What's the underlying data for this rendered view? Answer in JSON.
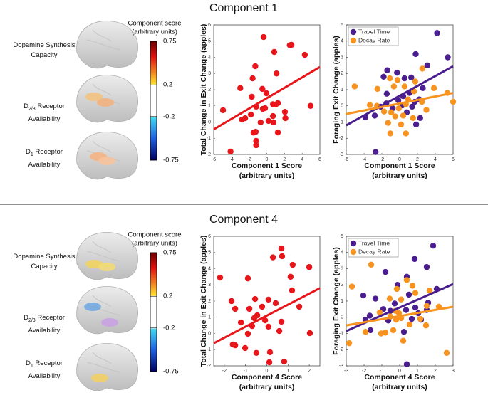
{
  "panels": [
    {
      "title": "Component 1",
      "brain": {
        "colorbar_title": "Component score",
        "colorbar_units": "(arbitrary units)",
        "colorbar": {
          "lim": [
            -0.75,
            0.75
          ],
          "ticks": [
            0.75,
            0.2,
            -0.2,
            -0.75
          ]
        },
        "labels": [
          {
            "text": "Dopamine Synthesis Capacity"
          },
          {
            "prefix": "D",
            "sub": "2/3",
            "text": "Receptor Availability"
          },
          {
            "prefix": "D",
            "sub": "1",
            "text": "Receptor Availability"
          }
        ]
      }
    },
    {
      "title": "Component 4",
      "brain": {
        "colorbar_title": "Component score",
        "colorbar_units": "(arbitrary units)",
        "colorbar": {
          "lim": [
            -0.75,
            0.75
          ],
          "ticks": [
            0.75,
            0.2,
            -0.2,
            -0.75
          ]
        },
        "labels": [
          {
            "text": "Dopamine Synthesis Capacity"
          },
          {
            "prefix": "D",
            "sub": "2/3",
            "text": "Receptor Availability"
          },
          {
            "prefix": "D",
            "sub": "1",
            "text": "Receptor Availability"
          }
        ]
      }
    }
  ],
  "chart_data": [
    {
      "type": "scatter",
      "ylabel": "Total Change in Exit Change (apples)",
      "xlabel": "Component 1 Score",
      "xlabel_units": "(arbitrary units)",
      "xlim": [
        -6,
        6
      ],
      "ylim": [
        -2,
        6
      ],
      "xticks": [
        -6,
        -4,
        -2,
        0,
        2,
        4,
        6
      ],
      "yticks": [
        -2,
        -1,
        0,
        1,
        2,
        3,
        4,
        5,
        6
      ],
      "color": "#e8161b",
      "x": [
        -0.36,
        0.84,
        2.78,
        2.6,
        4.3,
        -1.3,
        1.1,
        -1.6,
        -3.0,
        -0.5,
        -0.04,
        -1.7,
        1.25,
        1.0,
        -1.2,
        -0.2,
        -0.45,
        4.95,
        0.7,
        -4.95,
        -1.8,
        2.05,
        0.7,
        2.1,
        -2.45,
        0.2,
        -0.7,
        0.75,
        -1.5,
        -1.25,
        -1.2,
        -1.2,
        -4.1,
        1.25,
        -2.8
      ],
      "values": [
        5.25,
        4.33,
        4.77,
        4.75,
        4.15,
        3.45,
        3.0,
        2.7,
        2.1,
        2.05,
        1.78,
        1.56,
        1.17,
        1.08,
        0.95,
        0.86,
        0.81,
        1.0,
        1.1,
        0.73,
        0.46,
        0.63,
        0.37,
        0.24,
        0.24,
        0.07,
        -0.02,
        -0.02,
        -0.65,
        -0.6,
        -1.16,
        -1.43,
        -1.82,
        -0.64,
        0.15
      ],
      "fit": {
        "x": [
          -6,
          6
        ],
        "values": [
          -0.45,
          3.4
        ]
      }
    },
    {
      "type": "scatter",
      "ylabel": "Foraging Exit Change (apples)",
      "xlabel": "Component 1 Score",
      "xlabel_units": "(arbitrary units)",
      "xlim": [
        -6,
        6
      ],
      "ylim": [
        -3,
        5
      ],
      "xticks": [
        -6,
        -4,
        -2,
        0,
        2,
        4,
        6
      ],
      "yticks": [
        -3,
        -2,
        -1,
        0,
        1,
        2,
        3,
        4,
        5
      ],
      "legend": "upper left",
      "series": [
        {
          "name": "Travel Time",
          "color": "#4a1e8e",
          "x": [
            4.2,
            1.8,
            3.1,
            5.4,
            -1.4,
            -0.3,
            -1.8,
            0.55,
            1.3,
            2.6,
            1.1,
            0.4,
            -0.15,
            2.2,
            1.7,
            -1.5,
            0.3,
            1.4,
            0.8,
            -0.8,
            -2.8,
            -3.85,
            1.85,
            -2.7,
            -2.15,
            2.3,
            -1.45
          ],
          "values": [
            4.5,
            3.2,
            2.5,
            3.0,
            2.2,
            2.05,
            1.8,
            1.7,
            1.75,
            1.1,
            0.8,
            0.6,
            0.35,
            0.4,
            0.25,
            0.15,
            0.03,
            -0.05,
            -0.4,
            -0.15,
            -0.6,
            -0.7,
            -1.15,
            -2.85,
            -0.05,
            -0.75,
            0.75
          ],
          "fit": {
            "x": [
              -6,
              6
            ],
            "values": [
              -1.2,
              2.45
            ]
          }
        },
        {
          "name": "Decay Rate",
          "color": "#f7931e",
          "x": [
            -5.05,
            -1.1,
            -0.25,
            -0.65,
            0.55,
            1.75,
            2.55,
            3.85,
            5.35,
            6.0,
            1.6,
            0.95,
            0.7,
            -0.1,
            -0.95,
            -0.5,
            0.4,
            -3.35,
            -2.55,
            -1.75,
            0.15,
            -1.3,
            -1.05,
            0.7,
            1.5,
            2.5,
            3.0,
            -2.5
          ],
          "values": [
            1.2,
            1.7,
            1.6,
            1.2,
            1.2,
            1.5,
            2.3,
            1.1,
            0.8,
            0.25,
            0.9,
            0.4,
            0.1,
            -0.15,
            -0.4,
            -0.65,
            -0.6,
            0.05,
            0.0,
            -0.35,
            -1.15,
            -1.05,
            -1.7,
            -1.7,
            -0.75,
            0.25,
            -0.25,
            1.05
          ],
          "fit": {
            "x": [
              -6,
              6
            ],
            "values": [
              -0.5,
              0.8
            ]
          }
        }
      ]
    },
    {
      "type": "scatter",
      "ylabel": "Total Change in Exit Change (apples)",
      "xlabel": "Component 4 Score",
      "xlabel_units": "(arbitrary units)",
      "xlim": [
        -2.5,
        2.5
      ],
      "ylim": [
        -2,
        6
      ],
      "xticks": [
        -2,
        -1,
        0,
        1,
        2
      ],
      "yticks": [
        -2,
        -1,
        0,
        1,
        2,
        3,
        4,
        5,
        6
      ],
      "color": "#e8161b",
      "x": [
        0.69,
        0.29,
        0.72,
        1.22,
        2.0,
        1.12,
        -2.2,
        -0.89,
        1.19,
        -1.66,
        -0.55,
        0.08,
        0.42,
        -0.22,
        1.53,
        -0.82,
        -1.49,
        -0.45,
        -0.59,
        -0.08,
        0.69,
        -1.22,
        -0.69,
        0.08,
        0.59,
        -0.89,
        2.03,
        -1.6,
        -1.49,
        -1.02,
        -0.49,
        0.12,
        0.82,
        0.15
      ],
      "values": [
        5.25,
        4.7,
        4.77,
        4.24,
        4.1,
        3.5,
        3.45,
        3.4,
        2.66,
        2.0,
        2.13,
        2.09,
        1.87,
        1.65,
        1.65,
        1.52,
        1.52,
        1.12,
        0.95,
        0.81,
        0.73,
        0.68,
        0.46,
        0.42,
        0.15,
        -0.02,
        0.02,
        -0.68,
        -0.73,
        -0.9,
        -1.2,
        -1.78,
        -1.74,
        -1.16
      ],
      "fit": {
        "x": [
          -2.5,
          2.5
        ],
        "values": [
          -0.6,
          2.8
        ]
      }
    },
    {
      "type": "scatter",
      "ylabel": "Foraging Exit Change (apples)",
      "xlabel": "Component 4 Score",
      "xlabel_units": "(arbitrary units)",
      "xlim": [
        -3,
        3
      ],
      "ylim": [
        -3,
        5
      ],
      "xticks": [
        -3,
        -2,
        -1,
        0,
        1,
        2,
        3
      ],
      "yticks": [
        -3,
        -2,
        -1,
        0,
        1,
        2,
        3,
        4,
        5
      ],
      "legend": "upper left",
      "series": [
        {
          "name": "Travel Time",
          "color": "#4a1e8e",
          "x": [
            1.88,
            0.84,
            1.52,
            -0.8,
            0.4,
            -0.12,
            2.08,
            0.52,
            -2.04,
            -1.36,
            1.6,
            -0.28,
            0.88,
            0.36,
            1.52,
            -0.92,
            -0.52,
            1.04,
            -1.68,
            -1.92,
            -0.64,
            1.2,
            0.68,
            0.24,
            0.4,
            -1.64
          ],
          "values": [
            4.42,
            3.6,
            3.1,
            2.8,
            2.5,
            2.0,
            1.75,
            1.4,
            1.35,
            1.15,
            0.9,
            0.85,
            0.6,
            0.45,
            0.45,
            0.5,
            0.4,
            0.25,
            0.1,
            -0.15,
            -0.2,
            -0.15,
            -0.1,
            -0.9,
            -2.9,
            -0.8
          ],
          "fit": {
            "x": [
              -3,
              3
            ],
            "values": [
              -0.85,
              2.05
            ]
          }
        },
        {
          "name": "Decay Rate",
          "color": "#f7931e",
          "x": [
            -1.6,
            -2.68,
            0.4,
            0.72,
            -0.16,
            1.68,
            0.88,
            -0.56,
            0.08,
            1.52,
            2.2,
            -0.24,
            -0.04,
            -1.12,
            -0.52,
            0.08,
            0.56,
            -0.8,
            -0.36,
            -1.92,
            -1.04,
            0.2,
            1.48,
            2.64,
            -2.84,
            -0.2,
            1.16
          ],
          "values": [
            3.25,
            1.9,
            2.3,
            1.95,
            1.75,
            1.65,
            1.5,
            1.15,
            1.1,
            0.7,
            0.65,
            0.4,
            0.25,
            0.3,
            0.05,
            -0.05,
            -0.45,
            -0.95,
            -0.8,
            -0.9,
            -1.0,
            -1.45,
            -0.5,
            -2.2,
            -1.6,
            -0.15,
            -0.1
          ],
          "fit": {
            "x": [
              -3,
              3
            ],
            "values": [
              -0.5,
              0.65
            ]
          }
        }
      ]
    }
  ]
}
